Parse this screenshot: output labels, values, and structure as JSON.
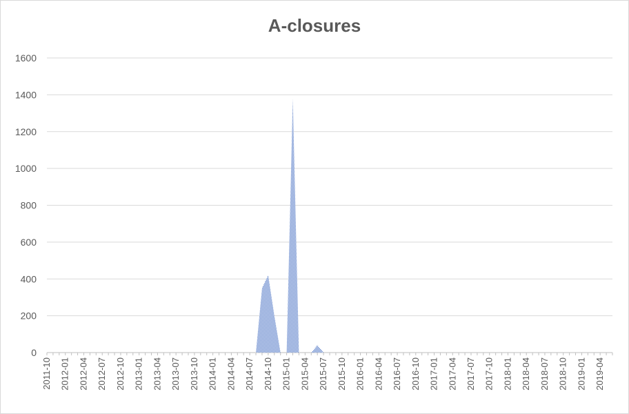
{
  "chart_data": {
    "type": "area",
    "title": "A-closures",
    "xlabel": "",
    "ylabel": "",
    "ylim": [
      0,
      1600
    ],
    "yticks": [
      0,
      200,
      400,
      600,
      800,
      1000,
      1200,
      1400,
      1600
    ],
    "grid": true,
    "legend": "none",
    "colors": {
      "fill": "#4a72c4",
      "grid": "#d9d9d9",
      "text": "#595959"
    },
    "x": [
      "2011-10",
      "2011-11",
      "2011-12",
      "2012-01",
      "2012-02",
      "2012-03",
      "2012-04",
      "2012-05",
      "2012-06",
      "2012-07",
      "2012-08",
      "2012-09",
      "2012-10",
      "2012-11",
      "2012-12",
      "2013-01",
      "2013-02",
      "2013-03",
      "2013-04",
      "2013-05",
      "2013-06",
      "2013-07",
      "2013-08",
      "2013-09",
      "2013-10",
      "2013-11",
      "2013-12",
      "2014-01",
      "2014-02",
      "2014-03",
      "2014-04",
      "2014-05",
      "2014-06",
      "2014-07",
      "2014-08",
      "2014-09",
      "2014-10",
      "2014-11",
      "2014-12",
      "2015-01",
      "2015-02",
      "2015-03",
      "2015-04",
      "2015-05",
      "2015-06",
      "2015-07",
      "2015-08",
      "2015-09",
      "2015-10",
      "2015-11",
      "2015-12",
      "2016-01",
      "2016-02",
      "2016-03",
      "2016-04",
      "2016-05",
      "2016-06",
      "2016-07",
      "2016-08",
      "2016-09",
      "2016-10",
      "2016-11",
      "2016-12",
      "2017-01",
      "2017-02",
      "2017-03",
      "2017-04",
      "2017-05",
      "2017-06",
      "2017-07",
      "2017-08",
      "2017-09",
      "2017-10",
      "2017-11",
      "2017-12",
      "2018-01",
      "2018-02",
      "2018-03",
      "2018-04",
      "2018-05",
      "2018-06",
      "2018-07",
      "2018-08",
      "2018-09",
      "2018-10",
      "2018-11",
      "2018-12",
      "2019-01",
      "2019-02",
      "2019-03",
      "2019-04",
      "2019-05",
      "2019-06"
    ],
    "xtick_labels": [
      "2011-10",
      "2012-01",
      "2012-04",
      "2012-07",
      "2012-10",
      "2013-01",
      "2013-04",
      "2013-07",
      "2013-10",
      "2014-01",
      "2014-04",
      "2014-07",
      "2014-10",
      "2015-01",
      "2015-04",
      "2015-07",
      "2015-10",
      "2016-01",
      "2016-04",
      "2016-07",
      "2016-10",
      "2017-01",
      "2017-04",
      "2017-07",
      "2017-10",
      "2018-01",
      "2018-04",
      "2018-07",
      "2018-10",
      "2019-01",
      "2019-04"
    ],
    "values": [
      0,
      0,
      0,
      0,
      0,
      0,
      0,
      0,
      0,
      0,
      0,
      0,
      0,
      0,
      0,
      0,
      0,
      0,
      0,
      0,
      0,
      0,
      0,
      0,
      0,
      0,
      0,
      0,
      0,
      0,
      0,
      0,
      0,
      0,
      0,
      350,
      420,
      200,
      0,
      0,
      1380,
      0,
      0,
      0,
      40,
      0,
      0,
      0,
      0,
      0,
      0,
      0,
      0,
      0,
      0,
      0,
      0,
      0,
      0,
      0,
      0,
      0,
      0,
      0,
      0,
      0,
      0,
      0,
      0,
      0,
      0,
      0,
      0,
      0,
      0,
      0,
      0,
      0,
      0,
      0,
      0,
      0,
      0,
      0,
      0,
      0,
      0,
      0,
      0,
      0,
      0,
      0,
      0
    ]
  }
}
